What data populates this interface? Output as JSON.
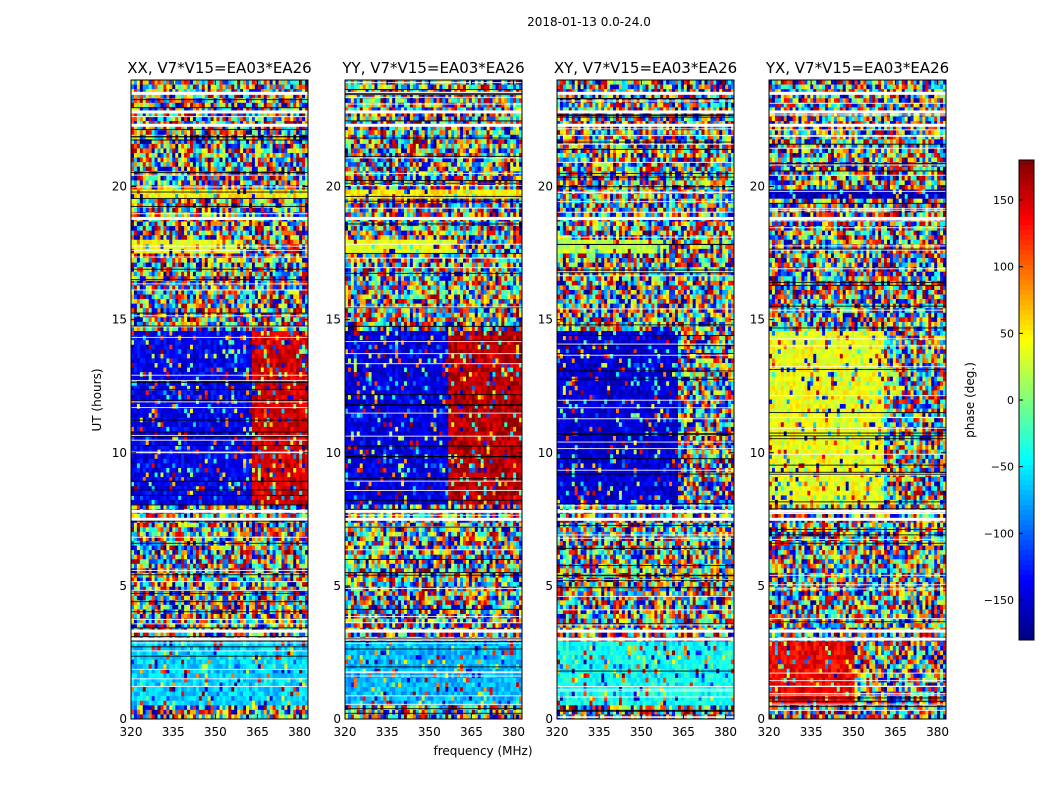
{
  "chart_data": {
    "type": "heatmap",
    "suptitle": "2018-01-13 0.0-24.0",
    "xlabel": "frequency (MHz)",
    "ylabel": "UT (hours)",
    "xlim": [
      320,
      383
    ],
    "ylim": [
      0,
      24
    ],
    "xticks": [
      "320",
      "335",
      "350",
      "365",
      "380"
    ],
    "xtick_values": [
      320,
      335,
      350,
      365,
      380
    ],
    "yticks": [
      "0",
      "5",
      "10",
      "15",
      "20"
    ],
    "ytick_values": [
      0,
      5,
      10,
      15,
      20
    ],
    "colorbar": {
      "label": "phase (deg.)",
      "range": [
        -180,
        180
      ],
      "ticks": [
        "150",
        "100",
        "50",
        "0",
        "−50",
        "−100",
        "−150"
      ],
      "tick_values": [
        150,
        100,
        50,
        0,
        -50,
        -100,
        -150
      ],
      "colormap": "jet"
    },
    "panels": [
      {
        "title": "XX, V7*V15=EA03*EA26",
        "structured_bands": [
          {
            "ut": [
              8.1,
              14.6
            ],
            "freq": [
              320,
              363
            ],
            "phase": -140
          },
          {
            "ut": [
              8.1,
              14.6
            ],
            "freq": [
              363,
              383
            ],
            "phase": 150
          },
          {
            "ut": [
              17.5,
              18.0
            ],
            "freq": [
              320,
              360
            ],
            "phase": 40
          },
          {
            "ut": [
              19.5,
              19.9
            ],
            "freq": [
              320,
              383
            ],
            "phase": 50
          },
          {
            "ut": [
              0.5,
              2.9
            ],
            "freq": [
              320,
              383
            ],
            "phase": -60
          }
        ]
      },
      {
        "title": "YY, V7*V15=EA03*EA26",
        "structured_bands": [
          {
            "ut": [
              8.1,
              14.6
            ],
            "freq": [
              320,
              357
            ],
            "phase": -145
          },
          {
            "ut": [
              8.1,
              14.6
            ],
            "freq": [
              357,
              383
            ],
            "phase": 160
          },
          {
            "ut": [
              17.5,
              18.0
            ],
            "freq": [
              320,
              360
            ],
            "phase": 40
          },
          {
            "ut": [
              19.5,
              19.9
            ],
            "freq": [
              320,
              383
            ],
            "phase": 50
          },
          {
            "ut": [
              0.5,
              2.9
            ],
            "freq": [
              320,
              383
            ],
            "phase": -70
          }
        ]
      },
      {
        "title": "XY, V7*V15=EA03*EA26",
        "structured_bands": [
          {
            "ut": [
              8.1,
              14.6
            ],
            "freq": [
              320,
              363
            ],
            "phase": -150
          },
          {
            "ut": [
              17.5,
              18.0
            ],
            "freq": [
              320,
              360
            ],
            "phase": 20
          },
          {
            "ut": [
              0.5,
              2.9
            ],
            "freq": [
              320,
              383
            ],
            "phase": -40
          }
        ]
      },
      {
        "title": "YX, V7*V15=EA03*EA26",
        "structured_bands": [
          {
            "ut": [
              8.1,
              14.6
            ],
            "freq": [
              320,
              361
            ],
            "phase": 40
          },
          {
            "ut": [
              19.5,
              19.9
            ],
            "freq": [
              320,
              383
            ],
            "phase": -160
          },
          {
            "ut": [
              0.5,
              2.9
            ],
            "freq": [
              320,
              350
            ],
            "phase": 140
          }
        ]
      }
    ],
    "flagged_ut": [
      3.0,
      3.3,
      7.5,
      7.8,
      18.8,
      22.3,
      22.8,
      23.5
    ]
  }
}
